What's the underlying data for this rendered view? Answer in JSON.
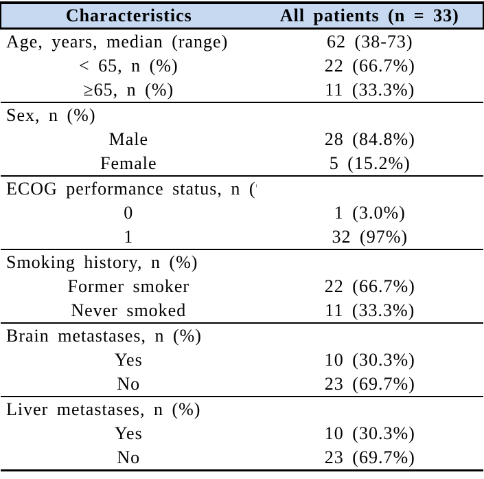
{
  "table": {
    "header": {
      "col1": "Characteristics",
      "col2": "All patients (n = 33)"
    },
    "sections": [
      {
        "rows": [
          {
            "label": "Age, years, median (range)",
            "value": "62 (38-73)",
            "indent": false
          },
          {
            "label": "< 65, n (%)",
            "value": "22 (66.7%)",
            "indent": true
          },
          {
            "label": "≥65, n (%)",
            "value": "11 (33.3%)",
            "indent": true
          }
        ]
      },
      {
        "rows": [
          {
            "label": "Sex, n (%)",
            "value": "",
            "indent": false
          },
          {
            "label": "Male",
            "value": "28 (84.8%)",
            "indent": true
          },
          {
            "label": "Female",
            "value": "5 (15.2%)",
            "indent": true
          }
        ]
      },
      {
        "rows": [
          {
            "label": "ECOG performance status, n (%)",
            "value": "",
            "indent": false
          },
          {
            "label": "0",
            "value": "1 (3.0%)",
            "indent": true
          },
          {
            "label": "1",
            "value": "32 (97%)",
            "indent": true
          }
        ]
      },
      {
        "rows": [
          {
            "label": "Smoking history, n (%)",
            "value": "",
            "indent": false
          },
          {
            "label": "Former smoker",
            "value": "22 (66.7%)",
            "indent": true
          },
          {
            "label": "Never smoked",
            "value": "11 (33.3%)",
            "indent": true
          }
        ]
      },
      {
        "rows": [
          {
            "label": "Brain metastases, n (%)",
            "value": "",
            "indent": false
          },
          {
            "label": "Yes",
            "value": "10 (30.3%)",
            "indent": true
          },
          {
            "label": "No",
            "value": "23 (69.7%)",
            "indent": true
          }
        ]
      },
      {
        "rows": [
          {
            "label": "Liver metastases, n (%)",
            "value": "",
            "indent": false
          },
          {
            "label": "Yes",
            "value": "10 (30.3%)",
            "indent": true
          },
          {
            "label": "No",
            "value": "23 (69.7%)",
            "indent": true
          }
        ]
      }
    ],
    "colors": {
      "header_bg": "#C6D9F1",
      "border": "#000000",
      "text": "#000000",
      "row_bg": "#FFFFFF"
    }
  }
}
